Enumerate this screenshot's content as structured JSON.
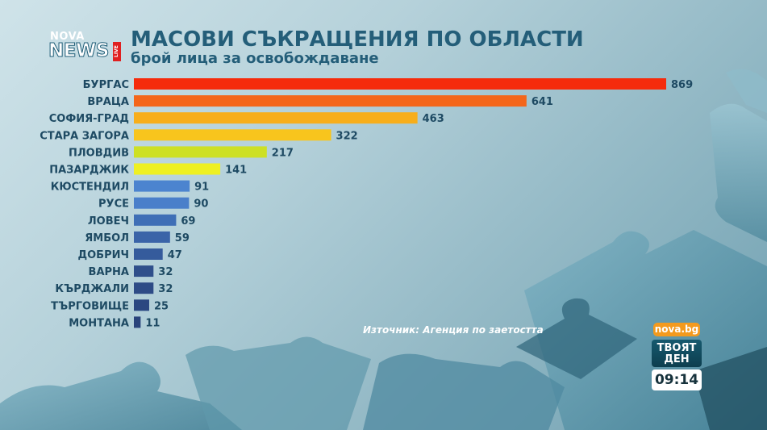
{
  "logo": {
    "nova": "NOVA",
    "news": "NEWS",
    "live": "LIVE"
  },
  "title": "МАСОВИ СЪКРАЩЕНИЯ ПО ОБЛАСТИ",
  "subtitle": "брой лица за освобождаване",
  "source": "Източник: Агенция по заетостта",
  "badge": {
    "site": "nova.bg",
    "show_line1": "ТВОЯТ",
    "show_line2": "ДЕН",
    "time": "09:14"
  },
  "chart_data": {
    "type": "bar",
    "orientation": "horizontal",
    "title": "МАСОВИ СЪКРАЩЕНИЯ ПО ОБЛАСТИ",
    "subtitle": "брой лица за освобождаване",
    "categories": [
      "БУРГАС",
      "ВРАЦА",
      "СОФИЯ-ГРАД",
      "СТАРА ЗАГОРА",
      "ПЛОВДИВ",
      "ПАЗАРДЖИК",
      "КЮСТЕНДИЛ",
      "РУСЕ",
      "ЛОВЕЧ",
      "ЯМБОЛ",
      "ДОБРИЧ",
      "ВАРНА",
      "КЪРДЖАЛИ",
      "ТЪРГОВИЩЕ",
      "МОНТАНА"
    ],
    "values": [
      869,
      641,
      463,
      322,
      217,
      141,
      91,
      90,
      69,
      59,
      47,
      32,
      32,
      25,
      11
    ],
    "colors": [
      "#f52b0c",
      "#f4661a",
      "#f7ae1b",
      "#f8c51d",
      "#cde024",
      "#eef022",
      "#4c84cf",
      "#4a7fca",
      "#3f6fb6",
      "#3a64a8",
      "#355b9c",
      "#2f4f8b",
      "#2d4b86",
      "#2b4781",
      "#29437b"
    ],
    "xlim": [
      0,
      869
    ],
    "grid": false,
    "legend": "none"
  }
}
